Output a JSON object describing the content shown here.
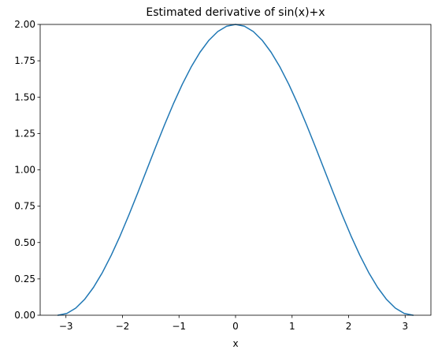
{
  "chart_data": {
    "type": "line",
    "title": "Estimated derivative of sin(x)+x",
    "xlabel": "x",
    "ylabel": "",
    "xlim": [
      -3.4558,
      3.4558
    ],
    "ylim": [
      0,
      2.0
    ],
    "grid": false,
    "legend": "none",
    "xticks": [
      -3,
      -2,
      -1,
      0,
      1,
      2,
      3
    ],
    "xtick_labels": [
      "−3",
      "−2",
      "−1",
      "0",
      "1",
      "2",
      "3"
    ],
    "yticks": [
      0,
      0.25,
      0.5,
      0.75,
      1.0,
      1.25,
      1.5,
      1.75,
      2.0
    ],
    "ytick_labels": [
      "0.00",
      "0.25",
      "0.50",
      "0.75",
      "1.00",
      "1.25",
      "1.50",
      "1.75",
      "2.00"
    ],
    "series": [
      {
        "color": "#1f77b4",
        "x": [
          -3.1416,
          -2.9845,
          -2.8274,
          -2.6704,
          -2.5133,
          -2.3562,
          -2.1991,
          -2.042,
          -1.885,
          -1.7279,
          -1.5708,
          -1.4137,
          -1.2566,
          -1.0996,
          -0.9425,
          -0.7854,
          -0.6283,
          -0.4712,
          -0.3142,
          -0.1571,
          0.0,
          0.1571,
          0.3142,
          0.4712,
          0.6283,
          0.7854,
          0.9425,
          1.0996,
          1.2566,
          1.4137,
          1.5708,
          1.7279,
          1.885,
          2.042,
          2.1991,
          2.3562,
          2.5133,
          2.6704,
          2.8274,
          2.9845,
          3.1416
        ],
        "y": [
          0.0,
          0.0123,
          0.0489,
          0.109,
          0.191,
          0.2929,
          0.4122,
          0.546,
          0.691,
          0.8436,
          1.0,
          1.1564,
          1.309,
          1.454,
          1.5878,
          1.7071,
          1.809,
          1.891,
          1.9511,
          1.9877,
          2.0,
          1.9877,
          1.9511,
          1.891,
          1.809,
          1.7071,
          1.5878,
          1.454,
          1.309,
          1.1564,
          1.0,
          0.8436,
          0.691,
          0.546,
          0.4122,
          0.2929,
          0.191,
          0.109,
          0.0489,
          0.0123,
          0.0
        ]
      }
    ]
  }
}
